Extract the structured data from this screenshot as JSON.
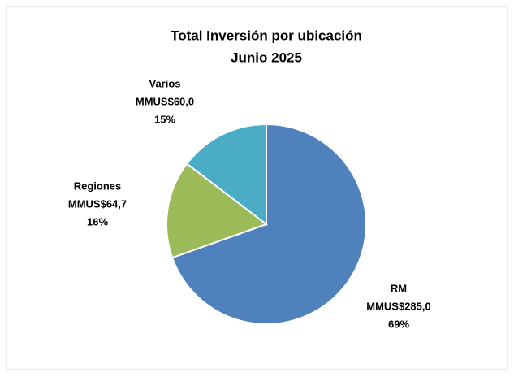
{
  "chart_data": {
    "type": "pie",
    "title": "Total Inversión por ubicación",
    "subtitle": "Junio 2025",
    "categories": [
      "RM",
      "Regiones",
      "Varios"
    ],
    "values": [
      285.0,
      64.7,
      60.0
    ],
    "value_labels": [
      "MMUS$285,0",
      "MMUS$64,7",
      "MMUS$60,0"
    ],
    "percent_labels": [
      "69%",
      "16%",
      "15%"
    ],
    "colors": [
      "#4f81bd",
      "#9bbb59",
      "#4bacc6"
    ]
  }
}
